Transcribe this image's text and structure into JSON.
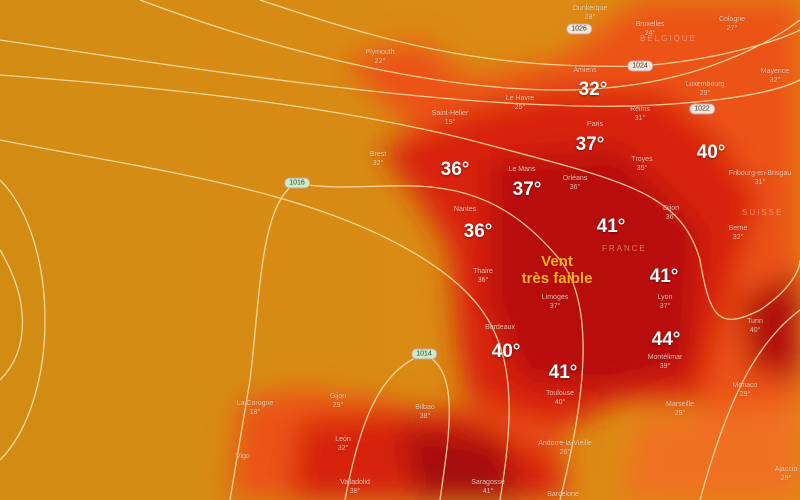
{
  "map": {
    "colors": {
      "sea": "#d88a12",
      "heat_light": "#f05a1a",
      "heat_mid": "#e0220e",
      "heat_dark": "#a80c08",
      "isobar": "#f8e6b0"
    },
    "wind_label": {
      "line1": "Vent",
      "line2": "très faible"
    },
    "countries": [
      "BELGIQUE",
      "SUISSE",
      "FRANCE"
    ],
    "pressure_labels": [
      "1026",
      "1024",
      "1022",
      "1016",
      "1014"
    ],
    "big_temperatures": [
      "32°",
      "37°",
      "40°",
      "36°",
      "37°",
      "36°",
      "41°",
      "41°",
      "40°",
      "44°",
      "41°"
    ],
    "cities": [
      {
        "name": "Plymouth",
        "temp": "22°"
      },
      {
        "name": "Dunkerque",
        "temp": "28°"
      },
      {
        "name": "Bruxelles",
        "temp": "24°"
      },
      {
        "name": "Cologne",
        "temp": "27°"
      },
      {
        "name": "Amiens",
        "temp": ""
      },
      {
        "name": "Le Havre",
        "temp": "25°"
      },
      {
        "name": "Saint-Helier",
        "temp": "19°"
      },
      {
        "name": "Reims",
        "temp": "31°"
      },
      {
        "name": "Luxembourg",
        "temp": "29°"
      },
      {
        "name": "Mayence",
        "temp": "32°"
      },
      {
        "name": "Paris",
        "temp": ""
      },
      {
        "name": "Troyes",
        "temp": "35°"
      },
      {
        "name": "Brest",
        "temp": "32°"
      },
      {
        "name": "Le Mans",
        "temp": ""
      },
      {
        "name": "Orléans",
        "temp": "36°"
      },
      {
        "name": "Fribourg-en-Brisgau",
        "temp": "31°"
      },
      {
        "name": "Nantes",
        "temp": ""
      },
      {
        "name": "Dijon",
        "temp": "36°"
      },
      {
        "name": "Berne",
        "temp": "32°"
      },
      {
        "name": "Thaire",
        "temp": "36°"
      },
      {
        "name": "Limoges",
        "temp": "37°"
      },
      {
        "name": "Lyon",
        "temp": "37°"
      },
      {
        "name": "Turin",
        "temp": "40°"
      },
      {
        "name": "Bordeaux",
        "temp": ""
      },
      {
        "name": "Montélimar",
        "temp": "39°"
      },
      {
        "name": "Toulouse",
        "temp": "40°"
      },
      {
        "name": "La Corogne",
        "temp": "18°"
      },
      {
        "name": "Gijon",
        "temp": "29°"
      },
      {
        "name": "Bilbao",
        "temp": "38°"
      },
      {
        "name": "Marseille",
        "temp": "29°"
      },
      {
        "name": "Monaco",
        "temp": "29°"
      },
      {
        "name": "Andorre-la-Vieille",
        "temp": "26°"
      },
      {
        "name": "León",
        "temp": "32°"
      },
      {
        "name": "Vigo",
        "temp": ""
      },
      {
        "name": "Valladolid",
        "temp": "38°"
      },
      {
        "name": "Saragosse",
        "temp": "41°"
      },
      {
        "name": "Barcelone",
        "temp": ""
      },
      {
        "name": "Ajaccio",
        "temp": "29°"
      }
    ]
  }
}
